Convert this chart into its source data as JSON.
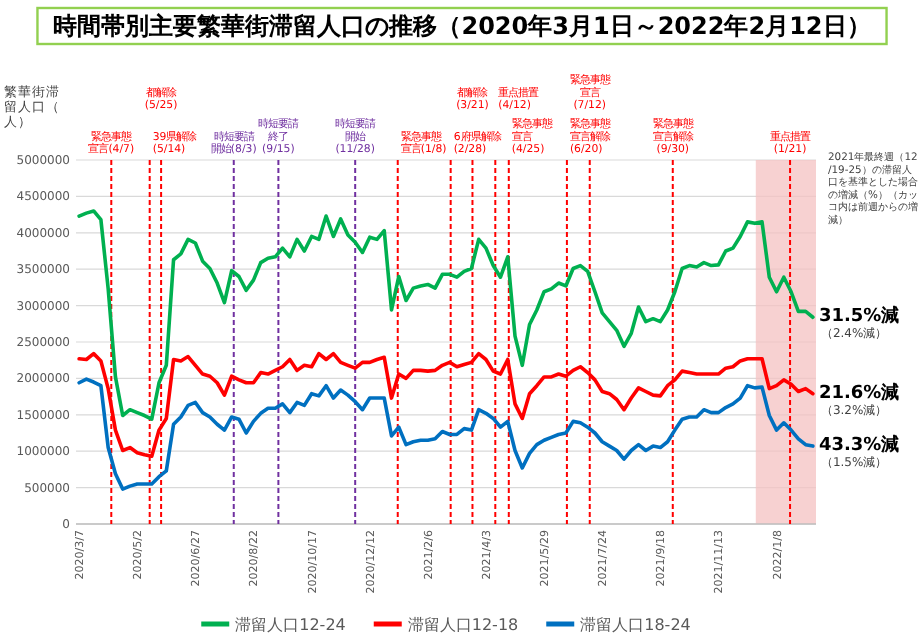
{
  "chart_data": {
    "type": "line",
    "title": "時間帯別主要繁華街滞留人口の推移（2020年3月1日～2022年2月12日）",
    "ylabel": "繁華街滞留人口（人）",
    "x": [
      "2020-03-07",
      "2020-03-14",
      "2020-03-21",
      "2020-03-28",
      "2020-04-04",
      "2020-04-11",
      "2020-04-18",
      "2020-04-25",
      "2020-05-02",
      "2020-05-09",
      "2020-05-16",
      "2020-05-23",
      "2020-05-30",
      "2020-06-06",
      "2020-06-13",
      "2020-06-20",
      "2020-06-27",
      "2020-07-04",
      "2020-07-11",
      "2020-07-18",
      "2020-07-25",
      "2020-08-01",
      "2020-08-08",
      "2020-08-15",
      "2020-08-22",
      "2020-08-29",
      "2020-09-05",
      "2020-09-12",
      "2020-09-19",
      "2020-09-26",
      "2020-10-03",
      "2020-10-10",
      "2020-10-17",
      "2020-10-24",
      "2020-10-31",
      "2020-11-07",
      "2020-11-14",
      "2020-11-21",
      "2020-11-28",
      "2020-12-05",
      "2020-12-12",
      "2020-12-19",
      "2020-12-26",
      "2021-01-02",
      "2021-01-09",
      "2021-01-16",
      "2021-01-23",
      "2021-01-30",
      "2021-02-06",
      "2021-02-13",
      "2021-02-20",
      "2021-02-27",
      "2021-03-06",
      "2021-03-13",
      "2021-03-20",
      "2021-03-27",
      "2021-04-03",
      "2021-04-10",
      "2021-04-17",
      "2021-04-24",
      "2021-05-01",
      "2021-05-08",
      "2021-05-15",
      "2021-05-22",
      "2021-05-29",
      "2021-06-05",
      "2021-06-12",
      "2021-06-19",
      "2021-06-26",
      "2021-07-03",
      "2021-07-10",
      "2021-07-17",
      "2021-07-24",
      "2021-07-31",
      "2021-08-07",
      "2021-08-14",
      "2021-08-21",
      "2021-08-28",
      "2021-09-04",
      "2021-09-11",
      "2021-09-18",
      "2021-09-25",
      "2021-10-02",
      "2021-10-09",
      "2021-10-16",
      "2021-10-23",
      "2021-10-30",
      "2021-11-06",
      "2021-11-13",
      "2021-11-20",
      "2021-11-27",
      "2021-12-04",
      "2021-12-11",
      "2021-12-18",
      "2021-12-25",
      "2022-01-01",
      "2022-01-08",
      "2022-01-15",
      "2022-01-22",
      "2022-01-29",
      "2022-02-05",
      "2022-02-12"
    ],
    "xlim": [
      "2020-03-04",
      "2022-02-15"
    ],
    "ylim": [
      0,
      5000000
    ],
    "yticks": [
      0,
      500000,
      1000000,
      1500000,
      2000000,
      2500000,
      3000000,
      3500000,
      4000000,
      4500000,
      5000000
    ],
    "xticks": [
      {
        "value": "2020-03-07",
        "label": "2020/3/7"
      },
      {
        "value": "2020-05-02",
        "label": "2020/5/2"
      },
      {
        "value": "2020-06-27",
        "label": "2020/6/27"
      },
      {
        "value": "2020-08-22",
        "label": "2020/8/22"
      },
      {
        "value": "2020-10-17",
        "label": "2020/10/17"
      },
      {
        "value": "2020-12-12",
        "label": "2020/12/12"
      },
      {
        "value": "2021-02-06",
        "label": "2021/2/6"
      },
      {
        "value": "2021-04-03",
        "label": "2021/4/3"
      },
      {
        "value": "2021-05-29",
        "label": "2021/5/29"
      },
      {
        "value": "2021-07-24",
        "label": "2021/7/24"
      },
      {
        "value": "2021-09-18",
        "label": "2021/9/18"
      },
      {
        "value": "2021-11-13",
        "label": "2021/11/13"
      },
      {
        "value": "2022-01-08",
        "label": "2022/1/8"
      }
    ],
    "grid": "y",
    "legend": "bottom",
    "series": [
      {
        "name": "滞留人口12-24",
        "color": "#00b050",
        "values": [
          4230000,
          4270000,
          4300000,
          4180000,
          3230000,
          2020000,
          1490000,
          1570000,
          1530000,
          1490000,
          1440000,
          1940000,
          2180000,
          3630000,
          3710000,
          3910000,
          3860000,
          3610000,
          3510000,
          3310000,
          3040000,
          3480000,
          3400000,
          3210000,
          3350000,
          3590000,
          3650000,
          3670000,
          3790000,
          3670000,
          3910000,
          3750000,
          3950000,
          3910000,
          4230000,
          3950000,
          4190000,
          3970000,
          3870000,
          3730000,
          3940000,
          3910000,
          4030000,
          2940000,
          3400000,
          3070000,
          3240000,
          3270000,
          3290000,
          3240000,
          3430000,
          3430000,
          3390000,
          3470000,
          3510000,
          3910000,
          3790000,
          3550000,
          3390000,
          3670000,
          2580000,
          2180000,
          2740000,
          2940000,
          3190000,
          3230000,
          3310000,
          3270000,
          3510000,
          3550000,
          3470000,
          3190000,
          2900000,
          2780000,
          2660000,
          2440000,
          2620000,
          2980000,
          2780000,
          2820000,
          2780000,
          2940000,
          3190000,
          3510000,
          3550000,
          3530000,
          3590000,
          3550000,
          3560000,
          3750000,
          3790000,
          3950000,
          4150000,
          4130000,
          4150000,
          3390000,
          3190000,
          3390000,
          3190000,
          2920000,
          2920000,
          2840000
        ]
      },
      {
        "name": "滞留人口12-18",
        "color": "#ff0000",
        "values": [
          2270000,
          2260000,
          2340000,
          2240000,
          1860000,
          1290000,
          1010000,
          1050000,
          980000,
          950000,
          930000,
          1290000,
          1450000,
          2260000,
          2240000,
          2300000,
          2180000,
          2060000,
          2030000,
          1940000,
          1770000,
          2030000,
          1980000,
          1940000,
          1940000,
          2080000,
          2060000,
          2110000,
          2160000,
          2260000,
          2110000,
          2180000,
          2160000,
          2340000,
          2260000,
          2340000,
          2220000,
          2180000,
          2140000,
          2220000,
          2220000,
          2260000,
          2290000,
          1730000,
          2060000,
          2000000,
          2110000,
          2110000,
          2100000,
          2110000,
          2180000,
          2220000,
          2160000,
          2190000,
          2220000,
          2340000,
          2260000,
          2100000,
          2060000,
          2260000,
          1650000,
          1450000,
          1790000,
          1900000,
          2020000,
          2020000,
          2060000,
          2030000,
          2110000,
          2160000,
          2080000,
          1980000,
          1820000,
          1790000,
          1710000,
          1570000,
          1730000,
          1870000,
          1820000,
          1770000,
          1760000,
          1900000,
          1980000,
          2100000,
          2080000,
          2060000,
          2060000,
          2060000,
          2060000,
          2140000,
          2160000,
          2240000,
          2270000,
          2270000,
          2270000,
          1860000,
          1900000,
          1980000,
          1920000,
          1820000,
          1860000,
          1790000
        ]
      },
      {
        "name": "滞留人口18-24",
        "color": "#0070c0",
        "values": [
          1940000,
          1990000,
          1950000,
          1900000,
          1050000,
          690000,
          480000,
          520000,
          550000,
          550000,
          550000,
          650000,
          730000,
          1370000,
          1470000,
          1630000,
          1670000,
          1530000,
          1470000,
          1370000,
          1290000,
          1470000,
          1440000,
          1250000,
          1410000,
          1520000,
          1590000,
          1590000,
          1650000,
          1530000,
          1670000,
          1630000,
          1790000,
          1760000,
          1900000,
          1730000,
          1840000,
          1770000,
          1680000,
          1570000,
          1730000,
          1730000,
          1730000,
          1210000,
          1330000,
          1090000,
          1130000,
          1150000,
          1150000,
          1170000,
          1270000,
          1230000,
          1230000,
          1310000,
          1290000,
          1570000,
          1520000,
          1450000,
          1330000,
          1410000,
          1010000,
          770000,
          970000,
          1090000,
          1150000,
          1190000,
          1230000,
          1250000,
          1410000,
          1390000,
          1330000,
          1250000,
          1130000,
          1070000,
          1010000,
          890000,
          1010000,
          1090000,
          1010000,
          1070000,
          1050000,
          1130000,
          1290000,
          1440000,
          1470000,
          1470000,
          1570000,
          1530000,
          1530000,
          1600000,
          1650000,
          1730000,
          1900000,
          1870000,
          1880000,
          1490000,
          1290000,
          1390000,
          1290000,
          1170000,
          1090000,
          1070000
        ]
      }
    ],
    "ref_lines": [
      {
        "axis": "x",
        "value": "2020-04-07",
        "label": "緊急事態宣言(4/7)",
        "color": "#ff0000",
        "line_style": "dashed"
      },
      {
        "axis": "x",
        "value": "2020-05-14",
        "label": "39県解除(5/14)",
        "color": "#ff0000",
        "line_style": "dashed"
      },
      {
        "axis": "x",
        "value": "2020-05-25",
        "label": "都解除(5/25)",
        "color": "#ff0000",
        "line_style": "dashed"
      },
      {
        "axis": "x",
        "value": "2020-08-03",
        "label": "時短要請開始(8/3)",
        "color": "#7030a0",
        "line_style": "dashed"
      },
      {
        "axis": "x",
        "value": "2020-09-15",
        "label": "時短要請終了(9/15)",
        "color": "#7030a0",
        "line_style": "dashed"
      },
      {
        "axis": "x",
        "value": "2020-11-28",
        "label": "時短要請開始(11/28)",
        "color": "#7030a0",
        "line_style": "dashed"
      },
      {
        "axis": "x",
        "value": "2021-01-08",
        "label": "緊急事態宣言(1/8)",
        "color": "#ff0000",
        "line_style": "dashed"
      },
      {
        "axis": "x",
        "value": "2021-02-28",
        "label": "6府県解除(2/28)",
        "color": "#ff0000",
        "line_style": "dashed"
      },
      {
        "axis": "x",
        "value": "2021-03-21",
        "label": "都解除(3/21)",
        "color": "#ff0000",
        "line_style": "dashed"
      },
      {
        "axis": "x",
        "value": "2021-04-12",
        "label": "重点措置(4/12)",
        "color": "#ff0000",
        "line_style": "dashed"
      },
      {
        "axis": "x",
        "value": "2021-04-25",
        "label": "緊急事態宣言(4/25)",
        "color": "#ff0000",
        "line_style": "dashed"
      },
      {
        "axis": "x",
        "value": "2021-06-20",
        "label": "緊急事態宣言解除(6/20)",
        "color": "#ff0000",
        "line_style": "dashed"
      },
      {
        "axis": "x",
        "value": "2021-07-12",
        "label": "緊急事態宣言(7/12)",
        "color": "#ff0000",
        "line_style": "dashed"
      },
      {
        "axis": "x",
        "value": "2021-09-30",
        "label": "緊急事態宣言解除(9/30)",
        "color": "#ff0000",
        "line_style": "dashed"
      },
      {
        "axis": "x",
        "value": "2022-01-21",
        "label": "重点措置(1/21)",
        "color": "#ff0000",
        "line_style": "dashed"
      }
    ],
    "bands": [
      {
        "axis": "x",
        "from": "2021-12-19",
        "to": "2022-02-15",
        "color": "#f4c2c2"
      }
    ],
    "annotations": [
      "2021年最終週（12/19-25）の滞留人口を基準とした場合の増減（%）（カッコ内は前週からの増減）",
      {
        "text": "31.5%減（2.4%減）",
        "x": "2022-02-12",
        "y": 2840000
      },
      {
        "text": "21.6%減（3.2%減）",
        "x": "2022-02-12",
        "y": 1790000
      },
      {
        "text": "43.3%減（1.5%減）",
        "x": "2022-02-12",
        "y": 1070000
      }
    ]
  }
}
